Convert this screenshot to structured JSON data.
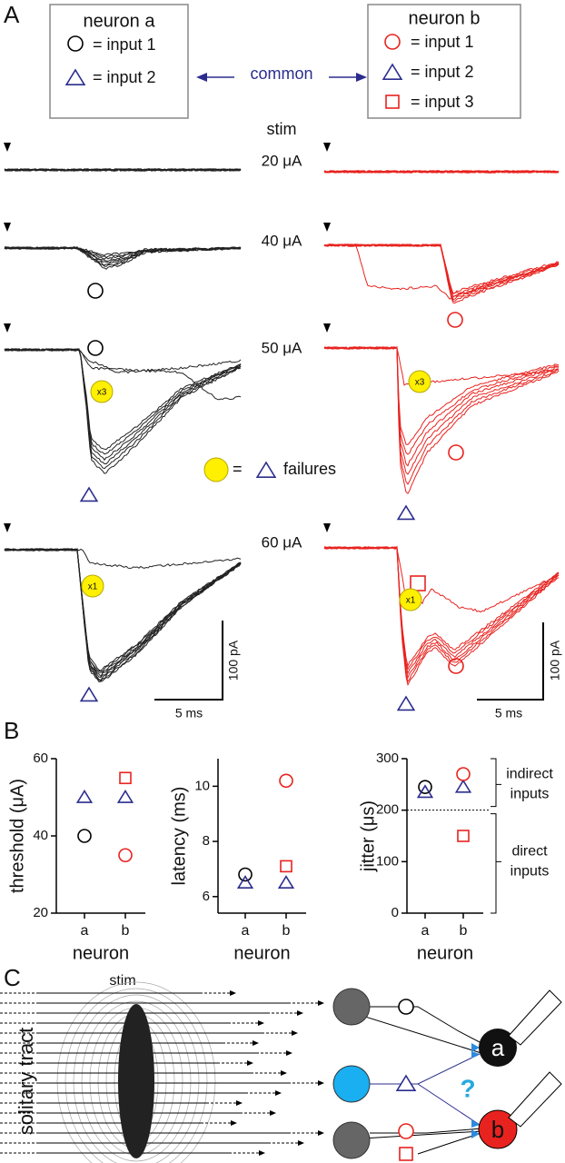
{
  "panel_a": {
    "label": "A",
    "neuron_a": {
      "title": "neuron a",
      "entries": [
        "= input 1",
        "= input 2"
      ]
    },
    "neuron_b": {
      "title": "neuron b",
      "entries": [
        "= input 1",
        "= input 2",
        "= input 3"
      ]
    },
    "common": "common",
    "stim": "stim",
    "stim_levels": [
      "20 μA",
      "40 μA",
      "50 μA",
      "60 μA"
    ],
    "failure_counts": [
      "x3",
      "x3",
      "x1",
      "x1"
    ],
    "failures_legend": {
      "equals": "=",
      "text": "failures"
    },
    "scale_bars": {
      "current": "100 pA",
      "time": "5 ms"
    }
  },
  "panel_b_label": "B",
  "chart_data": [
    {
      "type": "scatter",
      "ylabel": "threshold (μA)",
      "xlabel": "neuron",
      "categories": [
        "a",
        "b"
      ],
      "ylim": [
        20,
        60
      ],
      "yticks": [
        20,
        40,
        60
      ],
      "series": [
        {
          "marker": "circle",
          "color": "#000000",
          "values": [
            40,
            null
          ]
        },
        {
          "marker": "triangle",
          "color": "#2b2d8e",
          "values": [
            50,
            50
          ]
        },
        {
          "marker": "circle",
          "color": "#e8231f",
          "values": [
            null,
            35
          ]
        },
        {
          "marker": "square",
          "color": "#e8231f",
          "values": [
            null,
            55
          ]
        }
      ]
    },
    {
      "type": "scatter",
      "ylabel": "latency (ms)",
      "xlabel": "neuron",
      "categories": [
        "a",
        "b"
      ],
      "ylim": [
        5.4,
        11
      ],
      "yticks": [
        6,
        8,
        10
      ],
      "series": [
        {
          "marker": "circle",
          "color": "#000000",
          "values": [
            6.8,
            null
          ]
        },
        {
          "marker": "triangle",
          "color": "#2b2d8e",
          "values": [
            6.5,
            6.5
          ]
        },
        {
          "marker": "circle",
          "color": "#e8231f",
          "values": [
            null,
            10.2
          ]
        },
        {
          "marker": "square",
          "color": "#e8231f",
          "values": [
            null,
            7.1
          ]
        }
      ]
    },
    {
      "type": "scatter",
      "ylabel": "jitter (μs)",
      "xlabel": "neuron",
      "categories": [
        "a",
        "b"
      ],
      "ylim": [
        0,
        300
      ],
      "yticks": [
        0,
        100,
        200,
        300
      ],
      "reference_line": 200,
      "upper_label": [
        "indirect",
        "inputs"
      ],
      "lower_label": [
        "direct",
        "inputs"
      ],
      "series": [
        {
          "marker": "circle",
          "color": "#000000",
          "values": [
            245,
            null
          ]
        },
        {
          "marker": "triangle",
          "color": "#2b2d8e",
          "values": [
            235,
            245
          ]
        },
        {
          "marker": "circle",
          "color": "#e8231f",
          "values": [
            null,
            270
          ]
        },
        {
          "marker": "square",
          "color": "#e8231f",
          "values": [
            null,
            150
          ]
        }
      ]
    }
  ],
  "panel_c": {
    "label": "C",
    "stim": "stim",
    "tract": "solitary tract",
    "neuron_a": "a",
    "neuron_b": "b",
    "question": "?"
  }
}
